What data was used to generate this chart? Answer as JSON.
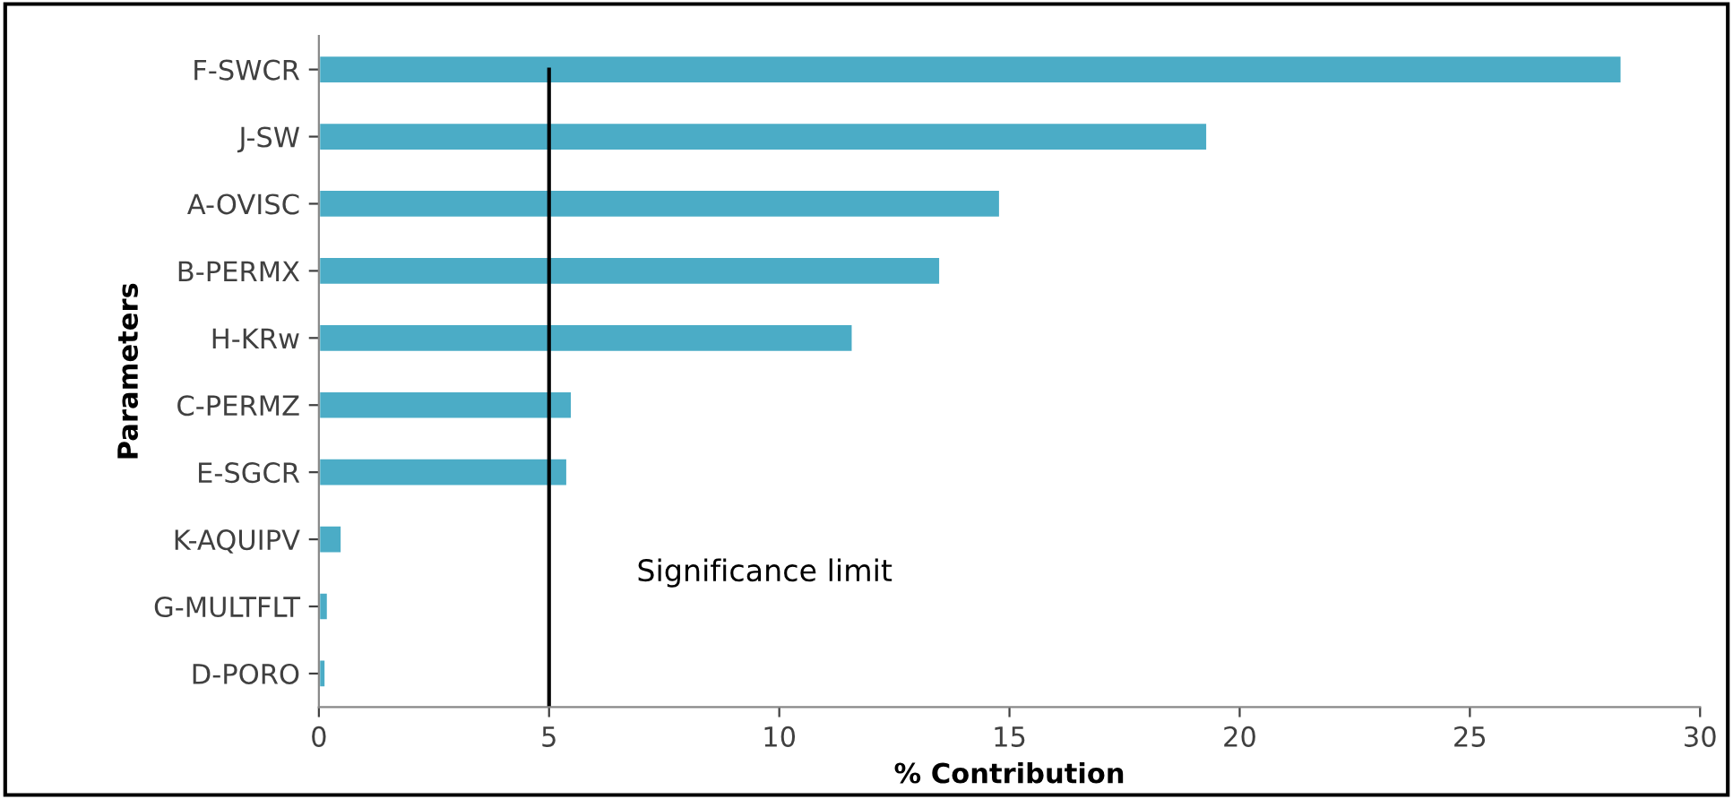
{
  "chart_data": {
    "type": "bar",
    "orientation": "horizontal",
    "xlabel": "% Contribution",
    "ylabel": "Parameters",
    "categories": [
      "F-SWCR",
      "J-SW",
      "A-OVISC",
      "B-PERMX",
      "H-KRw",
      "C-PERMZ",
      "E-SGCR",
      "K-AQUIPV",
      "G-MULTFLT",
      "D-PORO"
    ],
    "values": [
      28.3,
      19.3,
      14.8,
      13.5,
      11.6,
      5.5,
      5.4,
      0.5,
      0.2,
      0.15
    ],
    "color": "#4bacc6",
    "xlim": [
      0,
      30
    ],
    "xticks": [
      0,
      5,
      10,
      15,
      20,
      25,
      30
    ],
    "grid": false,
    "ref_lines": [
      {
        "axis": "x",
        "value": 5,
        "label": "Significance limit",
        "color": "#000000"
      }
    ]
  }
}
